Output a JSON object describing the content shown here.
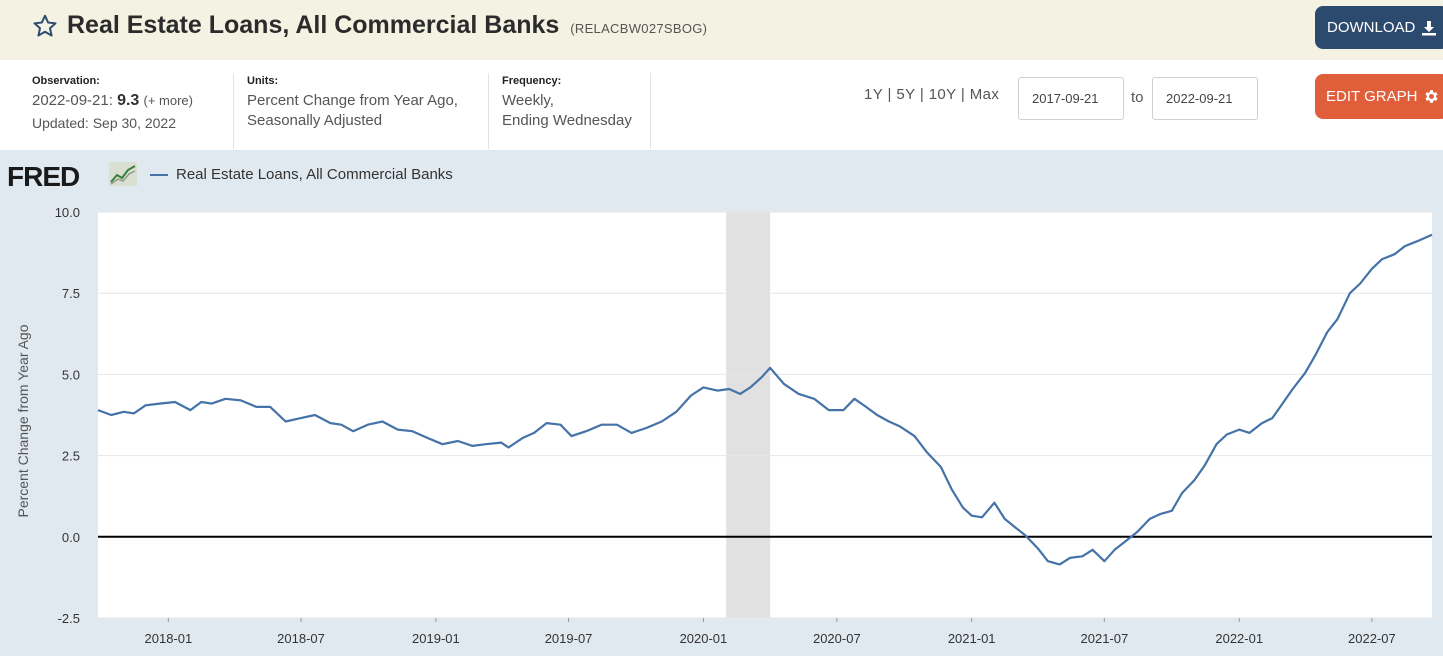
{
  "header": {
    "title": "Real Estate Loans, All Commercial Banks",
    "series_code": "(RELACBW027SBOG)",
    "download_label": "DOWNLOAD"
  },
  "meta": {
    "observation_label": "Observation:",
    "observation_date": "2022-09-21:",
    "observation_value": "9.3",
    "observation_more": "(+ more)",
    "updated": "Updated: Sep 30, 2022",
    "units_label": "Units:",
    "units_line1": "Percent Change from Year Ago,",
    "units_line2": "Seasonally Adjusted",
    "frequency_label": "Frequency:",
    "frequency_line1": "Weekly,",
    "frequency_line2": "Ending Wednesday"
  },
  "controls": {
    "range_1y": "1Y",
    "range_5y": "5Y",
    "range_10y": "10Y",
    "range_max": "Max",
    "sep": "|",
    "start_date": "2017-09-21",
    "to_label": "to",
    "end_date": "2022-09-21",
    "edit_label": "EDIT GRAPH"
  },
  "colors": {
    "line": "#4572a7",
    "recession": "#e1e1e1",
    "download_btn": "#2c4a6e",
    "edit_btn": "#e05e3a"
  },
  "chart_data": {
    "type": "line",
    "title": "",
    "logo": "FRED",
    "xlabel": "",
    "ylabel": "Percent Change from Year Ago",
    "ylim": [
      -2.5,
      10.0
    ],
    "yticks": [
      "10.0",
      "7.5",
      "5.0",
      "2.5",
      "0.0",
      "-2.5"
    ],
    "xlim": [
      "2017-09-27",
      "2022-09-21"
    ],
    "xticks": [
      "2018-01",
      "2018-07",
      "2019-01",
      "2019-07",
      "2020-01",
      "2020-07",
      "2021-01",
      "2021-07",
      "2022-01",
      "2022-07"
    ],
    "grid": true,
    "legend_position": "top-left",
    "recession": {
      "start": "2020-02",
      "end": "2020-04"
    },
    "zero_line": 0,
    "series": [
      {
        "name": "Real Estate Loans, All Commercial Banks",
        "x": [
          "2017-09-27",
          "2017-10-15",
          "2017-11-01",
          "2017-11-15",
          "2017-12-01",
          "2017-12-20",
          "2018-01-10",
          "2018-01-31",
          "2018-02-15",
          "2018-03-01",
          "2018-03-20",
          "2018-04-10",
          "2018-05-01",
          "2018-05-20",
          "2018-06-10",
          "2018-06-30",
          "2018-07-20",
          "2018-08-10",
          "2018-08-25",
          "2018-09-10",
          "2018-09-30",
          "2018-10-20",
          "2018-11-10",
          "2018-11-30",
          "2018-12-20",
          "2019-01-10",
          "2019-01-31",
          "2019-02-20",
          "2019-03-10",
          "2019-03-31",
          "2019-04-10",
          "2019-04-30",
          "2019-05-15",
          "2019-06-01",
          "2019-06-20",
          "2019-07-05",
          "2019-07-25",
          "2019-08-15",
          "2019-09-05",
          "2019-09-25",
          "2019-10-15",
          "2019-11-05",
          "2019-11-25",
          "2019-12-15",
          "2020-01-01",
          "2020-01-20",
          "2020-02-05",
          "2020-02-20",
          "2020-03-05",
          "2020-03-20",
          "2020-04-01",
          "2020-04-20",
          "2020-05-10",
          "2020-05-31",
          "2020-06-20",
          "2020-07-10",
          "2020-07-25",
          "2020-08-10",
          "2020-08-25",
          "2020-09-10",
          "2020-09-25",
          "2020-10-15",
          "2020-11-01",
          "2020-11-20",
          "2020-12-05",
          "2020-12-20",
          "2021-01-01",
          "2021-01-15",
          "2021-02-01",
          "2021-02-15",
          "2021-03-01",
          "2021-03-15",
          "2021-04-01",
          "2021-04-15",
          "2021-05-01",
          "2021-05-15",
          "2021-06-01",
          "2021-06-15",
          "2021-07-01",
          "2021-07-15",
          "2021-08-01",
          "2021-08-15",
          "2021-09-01",
          "2021-09-15",
          "2021-10-01",
          "2021-10-15",
          "2021-11-01",
          "2021-11-15",
          "2021-12-01",
          "2021-12-15",
          "2022-01-01",
          "2022-01-15",
          "2022-02-01",
          "2022-02-15",
          "2022-03-01",
          "2022-03-15",
          "2022-04-01",
          "2022-04-15",
          "2022-05-01",
          "2022-05-15",
          "2022-06-01",
          "2022-06-15",
          "2022-07-01",
          "2022-07-15",
          "2022-08-01",
          "2022-08-15",
          "2022-09-01",
          "2022-09-21"
        ],
        "values": [
          3.9,
          3.75,
          3.85,
          3.8,
          4.05,
          4.1,
          4.15,
          3.9,
          4.15,
          4.1,
          4.25,
          4.2,
          4.0,
          4.0,
          3.55,
          3.65,
          3.75,
          3.5,
          3.45,
          3.25,
          3.45,
          3.55,
          3.3,
          3.25,
          3.05,
          2.85,
          2.95,
          2.8,
          2.85,
          2.9,
          2.75,
          3.05,
          3.2,
          3.5,
          3.45,
          3.1,
          3.25,
          3.45,
          3.45,
          3.2,
          3.35,
          3.55,
          3.85,
          4.35,
          4.6,
          4.5,
          4.55,
          4.4,
          4.6,
          4.9,
          5.2,
          4.7,
          4.4,
          4.25,
          3.9,
          3.9,
          4.25,
          4.0,
          3.75,
          3.55,
          3.4,
          3.1,
          2.6,
          2.15,
          1.45,
          0.9,
          0.65,
          0.6,
          1.05,
          0.55,
          0.3,
          0.05,
          -0.35,
          -0.75,
          -0.85,
          -0.65,
          -0.6,
          -0.4,
          -0.75,
          -0.4,
          -0.1,
          0.15,
          0.55,
          0.7,
          0.8,
          1.35,
          1.75,
          2.2,
          2.85,
          3.15,
          3.3,
          3.2,
          3.5,
          3.65,
          4.1,
          4.55,
          5.05,
          5.6,
          6.3,
          6.7,
          7.5,
          7.8,
          8.25,
          8.55,
          8.7,
          8.95,
          9.1,
          9.3
        ]
      }
    ]
  }
}
